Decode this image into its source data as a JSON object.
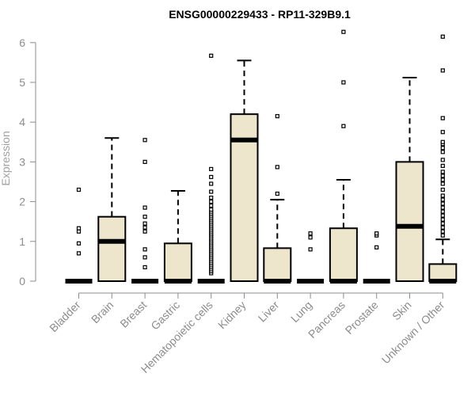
{
  "chart_data": {
    "type": "boxplot",
    "title": "ENSG00000229433 - RP11-329B9.1",
    "ylabel": "Expression",
    "xlabel": "",
    "ylim": [
      0,
      6.3
    ],
    "yticks": [
      0,
      1,
      2,
      3,
      4,
      5,
      6
    ],
    "box_fill": "#ede6cc",
    "categories": [
      "Bladder",
      "Brain",
      "Breast",
      "Gastric",
      "Hematopoietic cells",
      "Kidney",
      "Liver",
      "Lung",
      "Pancreas",
      "Prostate",
      "Skin",
      "Unknown / Other"
    ],
    "boxes": [
      {
        "q1": 0,
        "median": 0,
        "q3": 0,
        "whisker_low": 0,
        "whisker_high": 0,
        "outliers": [
          0.7,
          0.95,
          1.25,
          1.33,
          2.3
        ]
      },
      {
        "q1": 0,
        "median": 1.0,
        "q3": 1.62,
        "whisker_low": 0,
        "whisker_high": 3.6,
        "outliers": []
      },
      {
        "q1": 0,
        "median": 0,
        "q3": 0,
        "whisker_low": 0,
        "whisker_high": 0,
        "outliers": [
          0.35,
          0.6,
          0.8,
          1.25,
          1.35,
          1.45,
          1.62,
          1.85,
          3.0,
          3.55
        ]
      },
      {
        "q1": 0,
        "median": 0,
        "q3": 0.95,
        "whisker_low": 0,
        "whisker_high": 2.27,
        "outliers": []
      },
      {
        "q1": 0,
        "median": 0,
        "q3": 0,
        "whisker_low": 0,
        "whisker_high": 0,
        "outliers": [
          0.2,
          0.25,
          0.3,
          0.35,
          0.4,
          0.45,
          0.5,
          0.55,
          0.6,
          0.65,
          0.7,
          0.75,
          0.8,
          0.85,
          0.9,
          0.95,
          1.0,
          1.05,
          1.1,
          1.15,
          1.2,
          1.25,
          1.3,
          1.35,
          1.4,
          1.45,
          1.5,
          1.55,
          1.6,
          1.65,
          1.7,
          1.75,
          1.8,
          1.9,
          2.0,
          2.1,
          2.25,
          2.45,
          2.62,
          2.82,
          5.67
        ]
      },
      {
        "q1": 0,
        "median": 3.55,
        "q3": 4.2,
        "whisker_low": 0,
        "whisker_high": 5.55,
        "outliers": []
      },
      {
        "q1": 0,
        "median": 0,
        "q3": 0.83,
        "whisker_low": 0,
        "whisker_high": 2.05,
        "outliers": [
          2.2,
          2.87,
          4.15
        ]
      },
      {
        "q1": 0,
        "median": 0,
        "q3": 0,
        "whisker_low": 0,
        "whisker_high": 0,
        "outliers": [
          0.8,
          1.1,
          1.2
        ]
      },
      {
        "q1": 0,
        "median": 0,
        "q3": 1.33,
        "whisker_low": 0,
        "whisker_high": 2.55,
        "outliers": [
          3.9,
          5.0,
          6.27
        ]
      },
      {
        "q1": 0,
        "median": 0,
        "q3": 0,
        "whisker_low": 0,
        "whisker_high": 0,
        "outliers": [
          0.85,
          1.15,
          1.2
        ]
      },
      {
        "q1": 0,
        "median": 1.38,
        "q3": 3.0,
        "whisker_low": 0,
        "whisker_high": 5.12,
        "outliers": []
      },
      {
        "q1": 0,
        "median": 0,
        "q3": 0.43,
        "whisker_low": 0,
        "whisker_high": 1.05,
        "outliers": [
          1.15,
          1.25,
          1.35,
          1.45,
          1.55,
          1.65,
          1.75,
          1.85,
          1.95,
          2.05,
          2.15,
          2.3,
          2.45,
          2.55,
          2.65,
          2.75,
          2.9,
          3.05,
          3.25,
          3.35,
          3.45,
          3.5,
          3.75,
          4.1,
          5.3,
          6.15
        ]
      }
    ]
  }
}
